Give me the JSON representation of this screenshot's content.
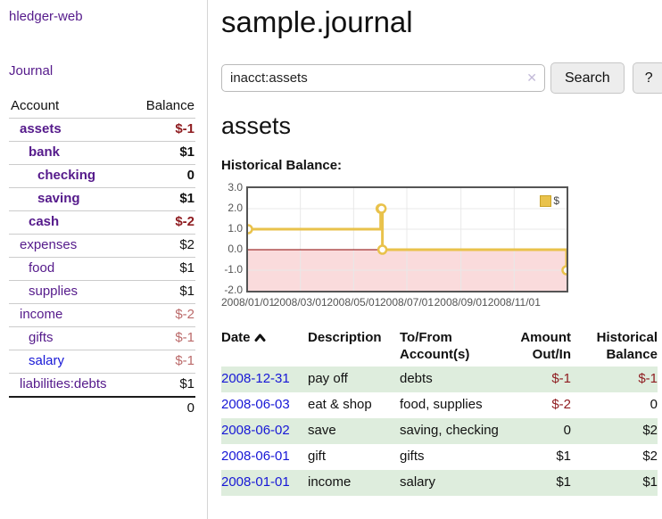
{
  "app": {
    "brand": "hledger-web",
    "nav_journal": "Journal"
  },
  "sidebar": {
    "headers": {
      "account": "Account",
      "balance": "Balance"
    },
    "accounts": [
      {
        "name": "assets",
        "depth": 1,
        "bold": true,
        "balance": "$-1",
        "neg": true,
        "muted": false,
        "link": "purple"
      },
      {
        "name": "bank",
        "depth": 2,
        "bold": true,
        "balance": "$1",
        "neg": false,
        "muted": false,
        "link": "purple"
      },
      {
        "name": "checking",
        "depth": 3,
        "bold": true,
        "balance": "0",
        "neg": false,
        "muted": false,
        "link": "purple"
      },
      {
        "name": "saving",
        "depth": 3,
        "bold": true,
        "balance": "$1",
        "neg": false,
        "muted": false,
        "link": "purple"
      },
      {
        "name": "cash",
        "depth": 2,
        "bold": true,
        "balance": "$-2",
        "neg": true,
        "muted": false,
        "link": "purple"
      },
      {
        "name": "expenses",
        "depth": 1,
        "bold": false,
        "balance": "$2",
        "neg": false,
        "muted": false,
        "link": "purple"
      },
      {
        "name": "food",
        "depth": 2,
        "bold": false,
        "balance": "$1",
        "neg": false,
        "muted": false,
        "link": "purple"
      },
      {
        "name": "supplies",
        "depth": 2,
        "bold": false,
        "balance": "$1",
        "neg": false,
        "muted": false,
        "link": "purple"
      },
      {
        "name": "income",
        "depth": 1,
        "bold": false,
        "balance": "$-2",
        "neg": true,
        "muted": true,
        "link": "purple"
      },
      {
        "name": "gifts",
        "depth": 2,
        "bold": false,
        "balance": "$-1",
        "neg": true,
        "muted": true,
        "link": "purple"
      },
      {
        "name": "salary",
        "depth": 2,
        "bold": false,
        "balance": "$-1",
        "neg": true,
        "muted": true,
        "link": "blue"
      },
      {
        "name": "liabilities:debts",
        "depth": 1,
        "bold": false,
        "balance": "$1",
        "neg": false,
        "muted": false,
        "link": "purple"
      }
    ],
    "total": "0"
  },
  "header": {
    "title": "sample.journal"
  },
  "search": {
    "value": "inacct:assets",
    "clear_icon": "✕",
    "button": "Search",
    "help_button": "?"
  },
  "account_page": {
    "heading": "assets",
    "chart_label": "Historical Balance:"
  },
  "chart_data": {
    "type": "line",
    "step": true,
    "title": "Historical Balance:",
    "legend_label": "$",
    "legend_position": "top-right",
    "xlim": [
      1,
      366
    ],
    "ylim": [
      -2,
      3
    ],
    "y_ticks": [
      {
        "label": "3.0",
        "value": 3
      },
      {
        "label": "2.0",
        "value": 2
      },
      {
        "label": "1.0",
        "value": 1
      },
      {
        "label": "0.0",
        "value": 0
      },
      {
        "label": "-1.0",
        "value": -1
      },
      {
        "label": "-2.0",
        "value": -2
      }
    ],
    "x_ticks": [
      {
        "label": "2008/01/01",
        "day": 1
      },
      {
        "label": "2008/03/01",
        "day": 61
      },
      {
        "label": "2008/05/01",
        "day": 122
      },
      {
        "label": "2008/07/01",
        "day": 183
      },
      {
        "label": "2008/09/01",
        "day": 245
      },
      {
        "label": "2008/11/01",
        "day": 306
      }
    ],
    "points": [
      {
        "date": "2008-01-01",
        "day": 1,
        "value": 1
      },
      {
        "date": "2008-06-01",
        "day": 153,
        "value": 2
      },
      {
        "date": "2008-06-02",
        "day": 154,
        "value": 2
      },
      {
        "date": "2008-06-03",
        "day": 155,
        "value": 0
      },
      {
        "date": "2008-12-31",
        "day": 366,
        "value": -1
      }
    ],
    "colors": {
      "line": "#e9c24b",
      "marker_fill": "#ffffff",
      "negative_region": "#fadbdc",
      "zero_line": "#8b0000",
      "grid": "#e8e8e8"
    }
  },
  "register": {
    "headers": {
      "date": "Date",
      "description": "Description",
      "accounts": "To/From Account(s)",
      "amount": "Amount Out/In",
      "balance": "Historical Balance"
    },
    "rows": [
      {
        "date": "2008-12-31",
        "description": "pay off",
        "accounts": "debts",
        "amount": "$-1",
        "amount_neg": true,
        "balance": "$-1",
        "balance_neg": true
      },
      {
        "date": "2008-06-03",
        "description": "eat & shop",
        "accounts": "food, supplies",
        "amount": "$-2",
        "amount_neg": true,
        "balance": "0",
        "balance_neg": false
      },
      {
        "date": "2008-06-02",
        "description": "save",
        "accounts": "saving, checking",
        "amount": "0",
        "amount_neg": false,
        "balance": "$2",
        "balance_neg": false
      },
      {
        "date": "2008-06-01",
        "description": "gift",
        "accounts": "gifts",
        "amount": "$1",
        "amount_neg": false,
        "balance": "$2",
        "balance_neg": false
      },
      {
        "date": "2008-01-01",
        "description": "income",
        "accounts": "salary",
        "amount": "$1",
        "amount_neg": false,
        "balance": "$1",
        "balance_neg": false
      }
    ]
  }
}
